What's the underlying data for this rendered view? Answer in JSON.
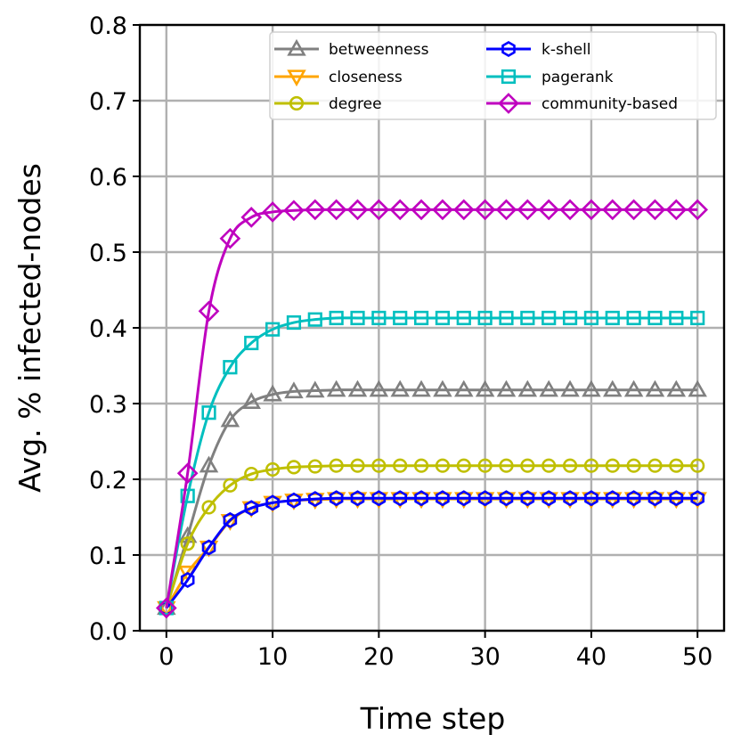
{
  "chart_data": {
    "type": "line",
    "title": "",
    "xlabel": "Time step",
    "ylabel": "Avg. % infected-nodes",
    "xlim": [
      -2.5,
      52.5
    ],
    "ylim": [
      0.0,
      0.8
    ],
    "xticks": [
      0,
      10,
      20,
      30,
      40,
      50
    ],
    "xtick_labels": [
      "0",
      "10",
      "20",
      "30",
      "40",
      "50"
    ],
    "yticks": [
      0.0,
      0.1,
      0.2,
      0.3,
      0.4,
      0.5,
      0.6,
      0.7,
      0.8
    ],
    "ytick_labels": [
      "0.0",
      "0.1",
      "0.2",
      "0.3",
      "0.4",
      "0.5",
      "0.6",
      "0.7",
      "0.8"
    ],
    "grid": true,
    "legend_position": "top-right",
    "legend_columns": 2,
    "x": [
      0,
      2,
      4,
      6,
      8,
      10,
      12,
      14,
      16,
      18,
      20,
      22,
      24,
      26,
      28,
      30,
      32,
      34,
      36,
      38,
      40,
      42,
      44,
      46,
      48,
      50
    ],
    "series": [
      {
        "name": "betweenness",
        "color": "#808080",
        "marker": "triangle-up",
        "values": [
          0.03,
          0.125,
          0.218,
          0.278,
          0.302,
          0.312,
          0.316,
          0.317,
          0.318,
          0.318,
          0.318,
          0.318,
          0.318,
          0.318,
          0.318,
          0.318,
          0.318,
          0.318,
          0.318,
          0.318,
          0.318,
          0.318,
          0.318,
          0.318,
          0.318,
          0.318
        ]
      },
      {
        "name": "closeness",
        "color": "#ffa500",
        "marker": "triangle-down",
        "values": [
          0.03,
          0.077,
          0.11,
          0.145,
          0.162,
          0.169,
          0.172,
          0.173,
          0.174,
          0.174,
          0.174,
          0.174,
          0.174,
          0.174,
          0.174,
          0.174,
          0.174,
          0.174,
          0.174,
          0.174,
          0.174,
          0.174,
          0.174,
          0.174,
          0.174,
          0.174
        ]
      },
      {
        "name": "degree",
        "color": "#bfbf00",
        "marker": "circle",
        "values": [
          0.03,
          0.115,
          0.163,
          0.192,
          0.207,
          0.213,
          0.216,
          0.217,
          0.218,
          0.218,
          0.218,
          0.218,
          0.218,
          0.218,
          0.218,
          0.218,
          0.218,
          0.218,
          0.218,
          0.218,
          0.218,
          0.218,
          0.218,
          0.218,
          0.218,
          0.218
        ]
      },
      {
        "name": "k-shell",
        "color": "#0000ff",
        "marker": "hexagon",
        "values": [
          0.03,
          0.067,
          0.11,
          0.146,
          0.162,
          0.169,
          0.172,
          0.174,
          0.175,
          0.175,
          0.175,
          0.175,
          0.175,
          0.175,
          0.175,
          0.175,
          0.175,
          0.175,
          0.175,
          0.175,
          0.175,
          0.175,
          0.175,
          0.175,
          0.175,
          0.175
        ]
      },
      {
        "name": "pagerank",
        "color": "#00bfbf",
        "marker": "square",
        "values": [
          0.03,
          0.178,
          0.288,
          0.348,
          0.38,
          0.398,
          0.407,
          0.411,
          0.413,
          0.413,
          0.413,
          0.413,
          0.413,
          0.413,
          0.413,
          0.413,
          0.413,
          0.413,
          0.413,
          0.413,
          0.413,
          0.413,
          0.413,
          0.413,
          0.413,
          0.413
        ]
      },
      {
        "name": "community-based",
        "color": "#bf00bf",
        "marker": "diamond",
        "values": [
          0.03,
          0.208,
          0.422,
          0.518,
          0.546,
          0.553,
          0.555,
          0.556,
          0.556,
          0.556,
          0.556,
          0.556,
          0.556,
          0.556,
          0.556,
          0.556,
          0.556,
          0.556,
          0.556,
          0.556,
          0.556,
          0.556,
          0.556,
          0.556,
          0.556,
          0.556
        ]
      }
    ]
  }
}
